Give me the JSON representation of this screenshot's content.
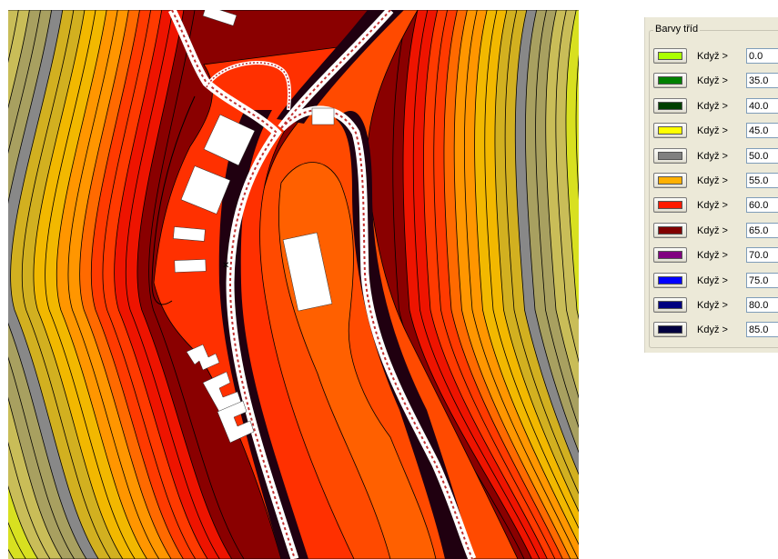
{
  "legend": {
    "title": "Barvy tříd",
    "classes": [
      {
        "color": "#aaff00",
        "label": "Když >",
        "value": "0.0"
      },
      {
        "color": "#008000",
        "label": "Když >",
        "value": "35.0"
      },
      {
        "color": "#004000",
        "label": "Když >",
        "value": "40.0"
      },
      {
        "color": "#ffff00",
        "label": "Když >",
        "value": "45.0"
      },
      {
        "color": "#808080",
        "label": "Když >",
        "value": "50.0"
      },
      {
        "color": "#ffb000",
        "label": "Když >",
        "value": "55.0"
      },
      {
        "color": "#ff1a00",
        "label": "Když >",
        "value": "60.0"
      },
      {
        "color": "#800000",
        "label": "Když >",
        "value": "65.0"
      },
      {
        "color": "#800080",
        "label": "Když >",
        "value": "70.0"
      },
      {
        "color": "#0000ff",
        "label": "Když >",
        "value": "75.0"
      },
      {
        "color": "#000080",
        "label": "Když >",
        "value": "80.0"
      },
      {
        "color": "#000040",
        "label": "Když >",
        "value": "85.0"
      }
    ]
  },
  "map": {
    "band_colors": [
      "#d8e020",
      "#c9bd58",
      "#a8a060",
      "#888888",
      "#d2b020",
      "#f2b800",
      "#ff9600",
      "#ff6a00",
      "#ff3a00",
      "#ee1400",
      "#8a0000",
      "#000040"
    ],
    "road_color": "#ffffff",
    "road_dash_color": "#c03030",
    "building_color": "#ffffff"
  }
}
